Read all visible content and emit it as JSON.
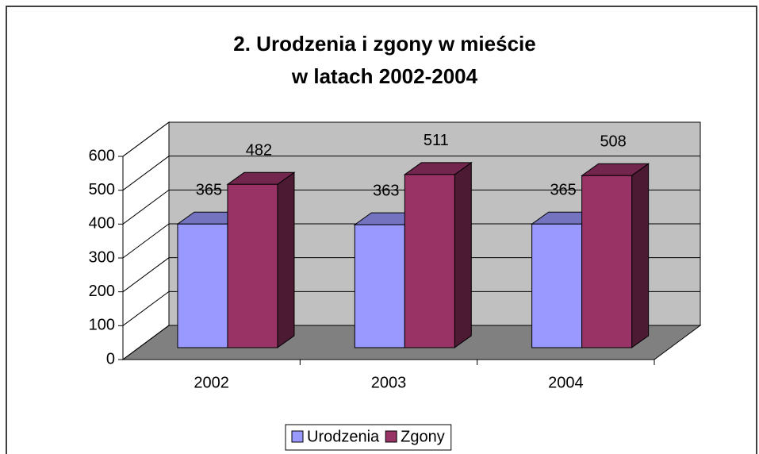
{
  "chart_data": {
    "type": "bar3d",
    "title": [
      "2. Urodzenia i zgony w mieście",
      "w latach 2002-2004"
    ],
    "categories": [
      "2002",
      "2003",
      "2004"
    ],
    "series": [
      {
        "name": "Urodzenia",
        "color": "#9999ff",
        "values": [
          365,
          363,
          365
        ]
      },
      {
        "name": "Zgony",
        "color": "#993366",
        "values": [
          482,
          511,
          508
        ]
      }
    ],
    "ylim": [
      0,
      600
    ],
    "yticks": [
      0,
      100,
      200,
      300,
      400,
      500,
      600
    ],
    "grid": true,
    "legend": "bottom"
  }
}
